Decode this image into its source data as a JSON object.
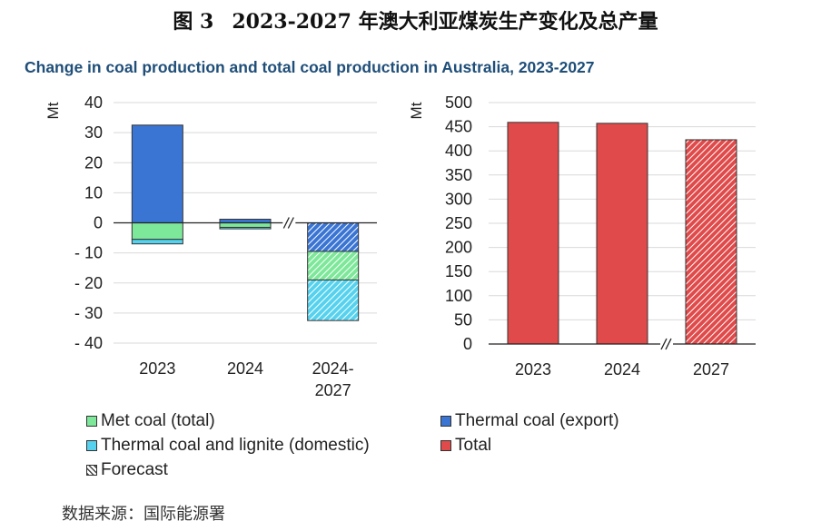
{
  "figure_number": "图 3",
  "figure_title": "2023-2027 年澳大利亚煤炭生产变化及总产量",
  "subtitle": "Change in coal production and total coal production in Australia, 2023-2027",
  "source": "数据来源：国际能源署",
  "colors": {
    "met": "#7ee89a",
    "thermal_export": "#3a75d4",
    "thermal_domestic": "#56d2ef",
    "total": "#e04a4a",
    "subtitle": "#1f4e79",
    "grid": "#d9d9d9"
  },
  "legend": [
    {
      "key": "met",
      "label": "Met coal (total)",
      "icon": "green-swatch"
    },
    {
      "key": "thermal_export",
      "label": "Thermal coal (export)",
      "icon": "blue-swatch"
    },
    {
      "key": "thermal_domestic",
      "label": "Thermal coal and lignite (domestic)",
      "icon": "cyan-swatch"
    },
    {
      "key": "total",
      "label": "Total",
      "icon": "red-swatch"
    },
    {
      "key": "forecast",
      "label": "Forecast",
      "icon": "hatched-swatch"
    }
  ],
  "chart_data": [
    {
      "type": "bar",
      "stacked": true,
      "ylabel": "Mt",
      "ylim": [
        -40,
        40
      ],
      "yticks": [
        40,
        30,
        20,
        10,
        0,
        -10,
        -20,
        -30,
        -40
      ],
      "ytick_labels": [
        "40",
        "30",
        "20",
        "10",
        "0",
        "- 10",
        "- 20",
        "- 30",
        "- 40"
      ],
      "grid": true,
      "categories": [
        "2023",
        "2024",
        "2024-2027"
      ],
      "category_lines": [
        [
          "2023"
        ],
        [
          "2024"
        ],
        [
          "2024-",
          "2027"
        ]
      ],
      "forecast": [
        false,
        false,
        true
      ],
      "axis_break_between": [
        1,
        2
      ],
      "series": [
        {
          "name": "Thermal coal (export)",
          "key": "thermal_export",
          "values": [
            32.5,
            1.2,
            -9.5
          ]
        },
        {
          "name": "Met coal (total)",
          "key": "met",
          "values": [
            -5.5,
            -1.5,
            -9.5
          ]
        },
        {
          "name": "Thermal coal and lignite (domestic)",
          "key": "thermal_domestic",
          "values": [
            -1.5,
            -0.5,
            -13.5
          ]
        }
      ]
    },
    {
      "type": "bar",
      "ylabel": "Mt",
      "ylim": [
        0,
        500
      ],
      "yticks": [
        500,
        450,
        400,
        350,
        300,
        250,
        200,
        150,
        100,
        50,
        0
      ],
      "ytick_labels": [
        "500",
        "450",
        "400",
        "350",
        "300",
        "250",
        "200",
        "150",
        "100",
        "50",
        "0"
      ],
      "grid": true,
      "categories": [
        "2023",
        "2024",
        "2027"
      ],
      "forecast": [
        false,
        false,
        true
      ],
      "axis_break_between": [
        1,
        2
      ],
      "series": [
        {
          "name": "Total",
          "key": "total",
          "values": [
            459,
            457,
            423
          ]
        }
      ]
    }
  ]
}
